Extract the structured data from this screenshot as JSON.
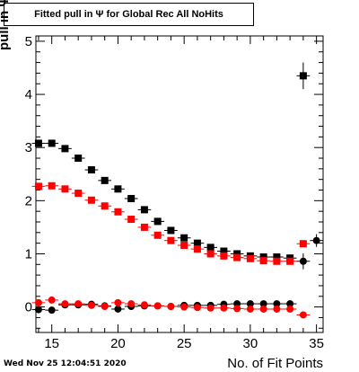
{
  "chart_data": {
    "type": "scatter",
    "title": "Fitted pull in  Ψ  for Global Rec All NoHits",
    "xlabel": "No. of Fit Points",
    "ylabel": "pull in  Ψ",
    "xlim": [
      13.8,
      35.5
    ],
    "ylim": [
      -0.48,
      5.1
    ],
    "x_ticks": [
      15,
      20,
      25,
      30,
      35
    ],
    "y_ticks": [
      0,
      1,
      2,
      3,
      4,
      5
    ],
    "grid": false,
    "footer": "Wed Nov 25 12:04:51 2020",
    "series": [
      {
        "marker": "square",
        "color": "#000000",
        "x": [
          14,
          15,
          16,
          17,
          18,
          19,
          20,
          21,
          22,
          23,
          24,
          25,
          26,
          27,
          28,
          29,
          30,
          31,
          32,
          33,
          34
        ],
        "y": [
          3.08,
          3.08,
          2.98,
          2.8,
          2.58,
          2.38,
          2.22,
          2.04,
          1.83,
          1.61,
          1.44,
          1.3,
          1.2,
          1.12,
          1.05,
          1.0,
          0.96,
          0.94,
          0.94,
          0.92,
          4.35
        ],
        "yerr": [
          0,
          0,
          0,
          0,
          0,
          0,
          0,
          0,
          0,
          0,
          0,
          0,
          0,
          0,
          0,
          0,
          0,
          0,
          0,
          0,
          0.25
        ]
      },
      {
        "marker": "square",
        "color": "#ff0000",
        "x": [
          14,
          15,
          16,
          17,
          18,
          19,
          20,
          21,
          22,
          23,
          24,
          25,
          26,
          27,
          28,
          29,
          30,
          31,
          32,
          33,
          34
        ],
        "y": [
          2.27,
          2.28,
          2.22,
          2.14,
          2.01,
          1.9,
          1.79,
          1.65,
          1.5,
          1.35,
          1.25,
          1.16,
          1.09,
          1.0,
          0.96,
          0.93,
          0.91,
          0.87,
          0.86,
          0.86,
          1.19
        ],
        "yerr": [
          0,
          0,
          0,
          0,
          0,
          0,
          0,
          0,
          0,
          0,
          0,
          0,
          0,
          0,
          0,
          0,
          0,
          0,
          0,
          0,
          0
        ]
      },
      {
        "marker": "circle",
        "color": "#000000",
        "x": [
          14,
          15,
          16,
          17,
          18,
          19,
          20,
          21,
          22,
          23,
          24,
          25,
          26,
          27,
          28,
          29,
          30,
          31,
          32,
          33,
          34,
          35
        ],
        "y": [
          -0.05,
          -0.06,
          0.04,
          0.04,
          0.05,
          0.02,
          -0.04,
          0.01,
          0.02,
          0.02,
          0.01,
          0.03,
          0.03,
          0.03,
          0.05,
          0.06,
          0.06,
          0.06,
          0.06,
          0.06,
          0.86,
          1.25
        ],
        "yerr": [
          0,
          0,
          0,
          0,
          0,
          0,
          0,
          0,
          0,
          0,
          0,
          0,
          0,
          0,
          0,
          0,
          0,
          0,
          0,
          0,
          0.15,
          0.12
        ]
      },
      {
        "marker": "circle",
        "color": "#ff0000",
        "x": [
          14,
          15,
          16,
          17,
          18,
          19,
          20,
          21,
          22,
          23,
          24,
          25,
          26,
          27,
          28,
          29,
          30,
          31,
          32,
          33,
          34
        ],
        "y": [
          0.08,
          0.13,
          0.06,
          0.06,
          0.03,
          0.01,
          0.08,
          0.06,
          0.04,
          0.02,
          0.01,
          0.0,
          -0.01,
          -0.02,
          -0.02,
          -0.03,
          -0.04,
          -0.04,
          -0.04,
          -0.04,
          -0.15
        ],
        "yerr": [
          0,
          0,
          0,
          0,
          0,
          0,
          0,
          0,
          0,
          0,
          0,
          0,
          0,
          0,
          0,
          0,
          0,
          0,
          0,
          0,
          0
        ]
      }
    ]
  }
}
